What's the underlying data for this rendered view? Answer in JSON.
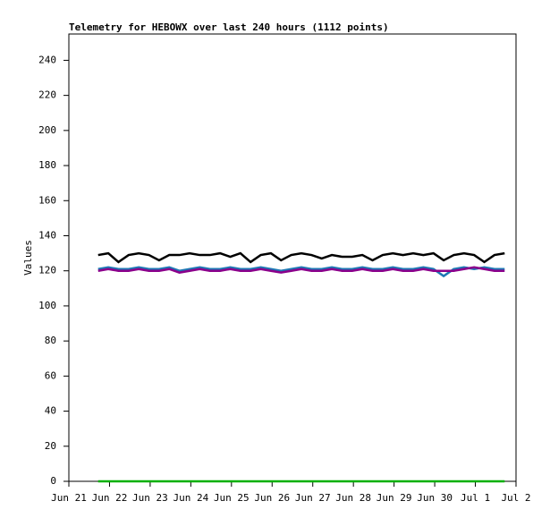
{
  "chart_data": {
    "type": "line",
    "title": "Telemetry for HEBOWX over last 240 hours (1112 points)",
    "y_label": "Values",
    "ylim": [
      0,
      255
    ],
    "yticks": [
      0,
      20,
      40,
      60,
      80,
      100,
      120,
      140,
      160,
      180,
      200,
      220,
      240
    ],
    "xlim": [
      0,
      11
    ],
    "xticks": [
      {
        "value": 0,
        "label": "Jun 21"
      },
      {
        "value": 1,
        "label": "Jun 22"
      },
      {
        "value": 2,
        "label": "Jun 23"
      },
      {
        "value": 3,
        "label": "Jun 24"
      },
      {
        "value": 4,
        "label": "Jun 25"
      },
      {
        "value": 5,
        "label": "Jun 26"
      },
      {
        "value": 6,
        "label": "Jun 27"
      },
      {
        "value": 7,
        "label": "Jun 28"
      },
      {
        "value": 8,
        "label": "Jun 29"
      },
      {
        "value": 9,
        "label": "Jun 30"
      },
      {
        "value": 10,
        "label": "Jul 1"
      },
      {
        "value": 11,
        "label": "Jul 2"
      }
    ],
    "x": [
      0.72,
      0.97,
      1.22,
      1.47,
      1.72,
      1.97,
      2.22,
      2.47,
      2.72,
      2.97,
      3.22,
      3.47,
      3.72,
      3.97,
      4.22,
      4.47,
      4.72,
      4.97,
      5.22,
      5.47,
      5.72,
      5.97,
      6.22,
      6.47,
      6.72,
      6.97,
      7.22,
      7.47,
      7.72,
      7.97,
      8.22,
      8.47,
      8.72,
      8.97,
      9.22,
      9.47,
      9.72,
      9.97,
      10.22,
      10.47,
      10.72
    ],
    "series": [
      {
        "color": "#000000",
        "values": [
          129,
          130,
          125,
          129,
          130,
          129,
          126,
          129,
          129,
          130,
          129,
          129,
          130,
          128,
          130,
          125,
          129,
          130,
          126,
          129,
          130,
          129,
          127,
          129,
          128,
          128,
          129,
          126,
          129,
          130,
          129,
          130,
          129,
          130,
          126,
          129,
          130,
          129,
          125,
          129,
          130
        ]
      },
      {
        "color": "#1f78b4",
        "values": [
          121,
          122,
          121,
          121,
          122,
          121,
          121,
          122,
          120,
          121,
          122,
          121,
          121,
          122,
          121,
          121,
          122,
          121,
          120,
          121,
          122,
          121,
          121,
          122,
          121,
          121,
          122,
          121,
          121,
          122,
          121,
          121,
          122,
          121,
          117,
          121,
          122,
          121,
          122,
          121,
          121
        ]
      },
      {
        "color": "#8b008b",
        "values": [
          120,
          121,
          120,
          120,
          121,
          120,
          120,
          121,
          119,
          120,
          121,
          120,
          120,
          121,
          120,
          120,
          121,
          120,
          119,
          120,
          121,
          120,
          120,
          121,
          120,
          120,
          121,
          120,
          120,
          121,
          120,
          120,
          121,
          120,
          120,
          120,
          121,
          122,
          121,
          120,
          120
        ]
      },
      {
        "color": "#00b000",
        "values": [
          0,
          0,
          0,
          0,
          0,
          0,
          0,
          0,
          0,
          0,
          0,
          0,
          0,
          0,
          0,
          0,
          0,
          0,
          0,
          0,
          0,
          0,
          0,
          0,
          0,
          0,
          0,
          0,
          0,
          0,
          0,
          0,
          0,
          0,
          0,
          0,
          0,
          0,
          0,
          0,
          0
        ]
      }
    ]
  }
}
